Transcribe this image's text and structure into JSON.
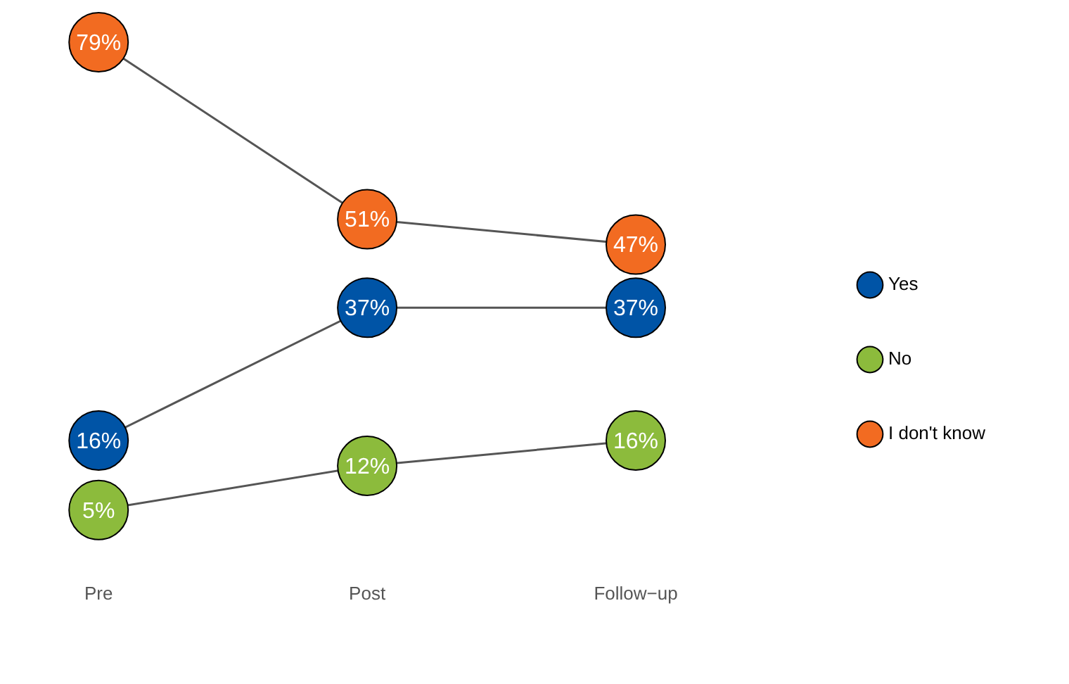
{
  "chart_data": {
    "type": "line",
    "categories": [
      "Pre",
      "Post",
      "Follow−up"
    ],
    "series": [
      {
        "name": "Yes",
        "color": "#0054a6",
        "values": [
          16,
          37,
          37
        ],
        "value_labels": [
          "16%",
          "37%",
          "37%"
        ]
      },
      {
        "name": "No",
        "color": "#8cbb3c",
        "values": [
          5,
          12,
          16
        ],
        "value_labels": [
          "5%",
          "12%",
          "16%"
        ]
      },
      {
        "name": "I don't know",
        "color": "#f26b21",
        "values": [
          79,
          51,
          47
        ],
        "value_labels": [
          "79%",
          "51%",
          "47%"
        ]
      }
    ],
    "marker": "circle",
    "legend": "right",
    "grid": false,
    "tick_labels": "x"
  }
}
